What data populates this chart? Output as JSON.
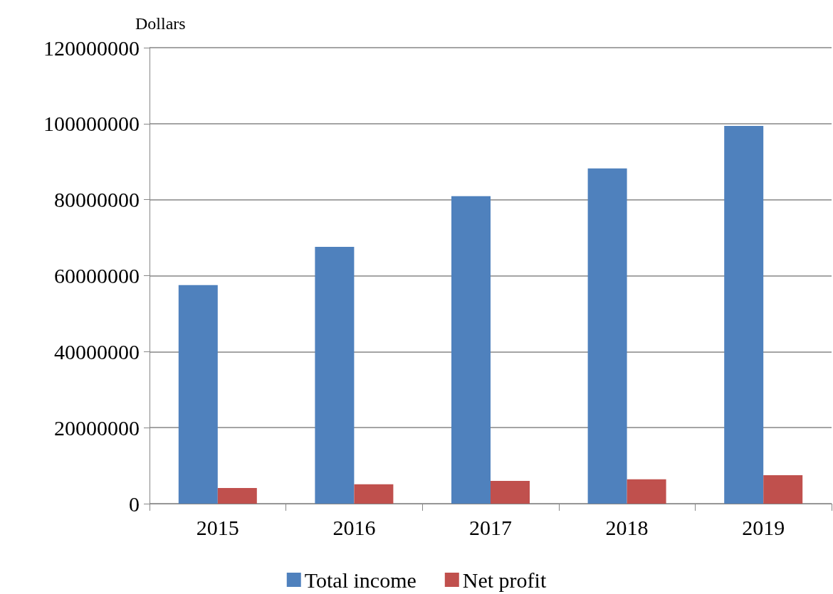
{
  "chart_data": {
    "type": "bar",
    "ylabel": "Dollars",
    "categories": [
      "2015",
      "2016",
      "2017",
      "2018",
      "2019"
    ],
    "series": [
      {
        "name": "Total income",
        "color": "#4f81bd",
        "values": [
          57500000,
          67600000,
          80900000,
          88200000,
          99400000
        ]
      },
      {
        "name": "Net profit",
        "color": "#c0504d",
        "values": [
          4100000,
          5100000,
          6000000,
          6400000,
          7500000
        ]
      }
    ],
    "ylim": [
      0,
      120000000
    ],
    "yticks": [
      0,
      20000000,
      40000000,
      60000000,
      80000000,
      100000000,
      120000000
    ],
    "grid": "y",
    "legend": "bottom"
  }
}
